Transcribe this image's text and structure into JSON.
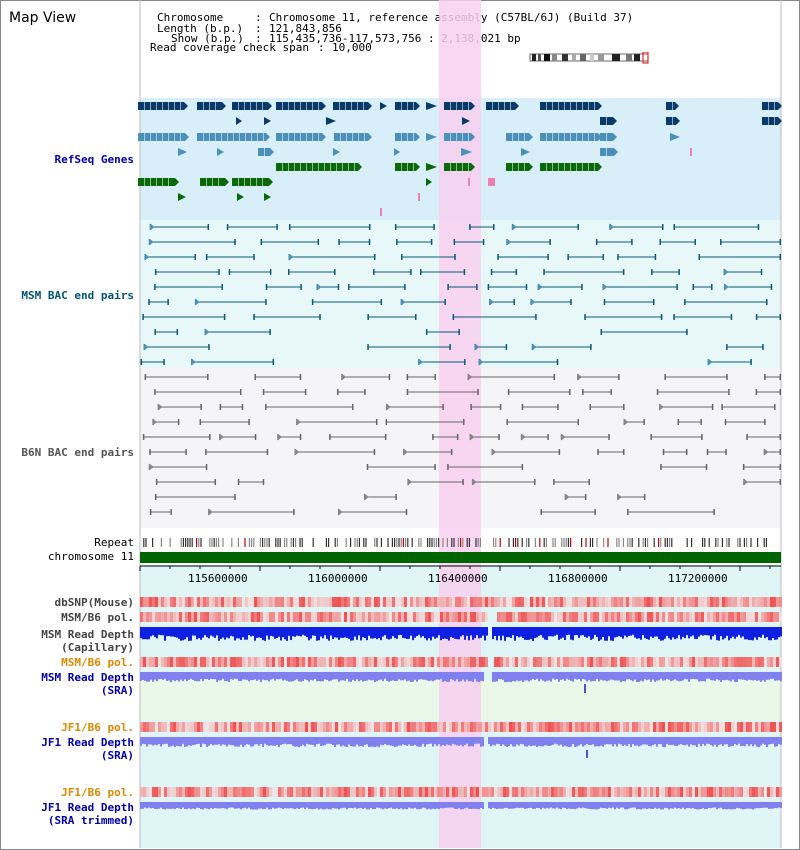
{
  "app": {
    "title": "Map View"
  },
  "header": {
    "chromosome_label": "Chromosome",
    "chromosome_value": "Chromosome 11, reference assembly (C57BL/6J) (Build 37)",
    "length_label": "Length (b.p.)",
    "length_value": "121,843,856",
    "show_label": "Show (b.p.)",
    "show_value": "115,435,736-117,573,756 : 2,138,021 bp",
    "coverage_label": "Read coverage check span",
    "coverage_value": "10,000"
  },
  "tracks": {
    "refseq": {
      "label": "RefSeq Genes",
      "color": "#0000aa"
    },
    "msm_bac": {
      "label": "MSM BAC end pairs",
      "color": "#005577"
    },
    "b6n_bac": {
      "label": "B6N BAC end pairs",
      "color": "#555555"
    },
    "repeat": {
      "label": "Repeat"
    },
    "chromosome": {
      "label": "chromosome 11"
    },
    "dbsnp": {
      "label": "dbSNP(Mouse)"
    },
    "msm_b6_pol_1": {
      "label": "MSM/B6 pol."
    },
    "msm_depth_cap": {
      "label_1": "MSM Read Depth",
      "label_2": "(Capillary)"
    },
    "msm_b6_pol_2": {
      "label": "MSM/B6 pol."
    },
    "msm_depth_sra": {
      "label_1": "MSM Read Depth",
      "label_2": "(SRA)"
    },
    "jf1_b6_pol_1": {
      "label": "JF1/B6 pol."
    },
    "jf1_depth_sra": {
      "label_1": "JF1 Read Depth",
      "label_2": "(SRA)"
    },
    "jf1_b6_pol_2": {
      "label": "JF1/B6 pol."
    },
    "jf1_depth_trim": {
      "label_1": "JF1 Read Depth",
      "label_2": "(SRA trimmed)"
    }
  },
  "axis": {
    "ticks": [
      "115600000",
      "116000000",
      "116400000",
      "116800000",
      "117200000"
    ]
  },
  "colors": {
    "highlight": "#f8d8f0",
    "refseq_bg": "#d8eef8",
    "msm_bg": "#e6f8f8",
    "b6n_bg": "#f6f6fa",
    "gene_dark": "#0a3a6a",
    "gene_mid": "#4a90b8",
    "gene_green": "#0a6a0a",
    "chromosome_bar": "#006400",
    "orange_label": "#dd8800",
    "blue_label": "#0000aa"
  }
}
